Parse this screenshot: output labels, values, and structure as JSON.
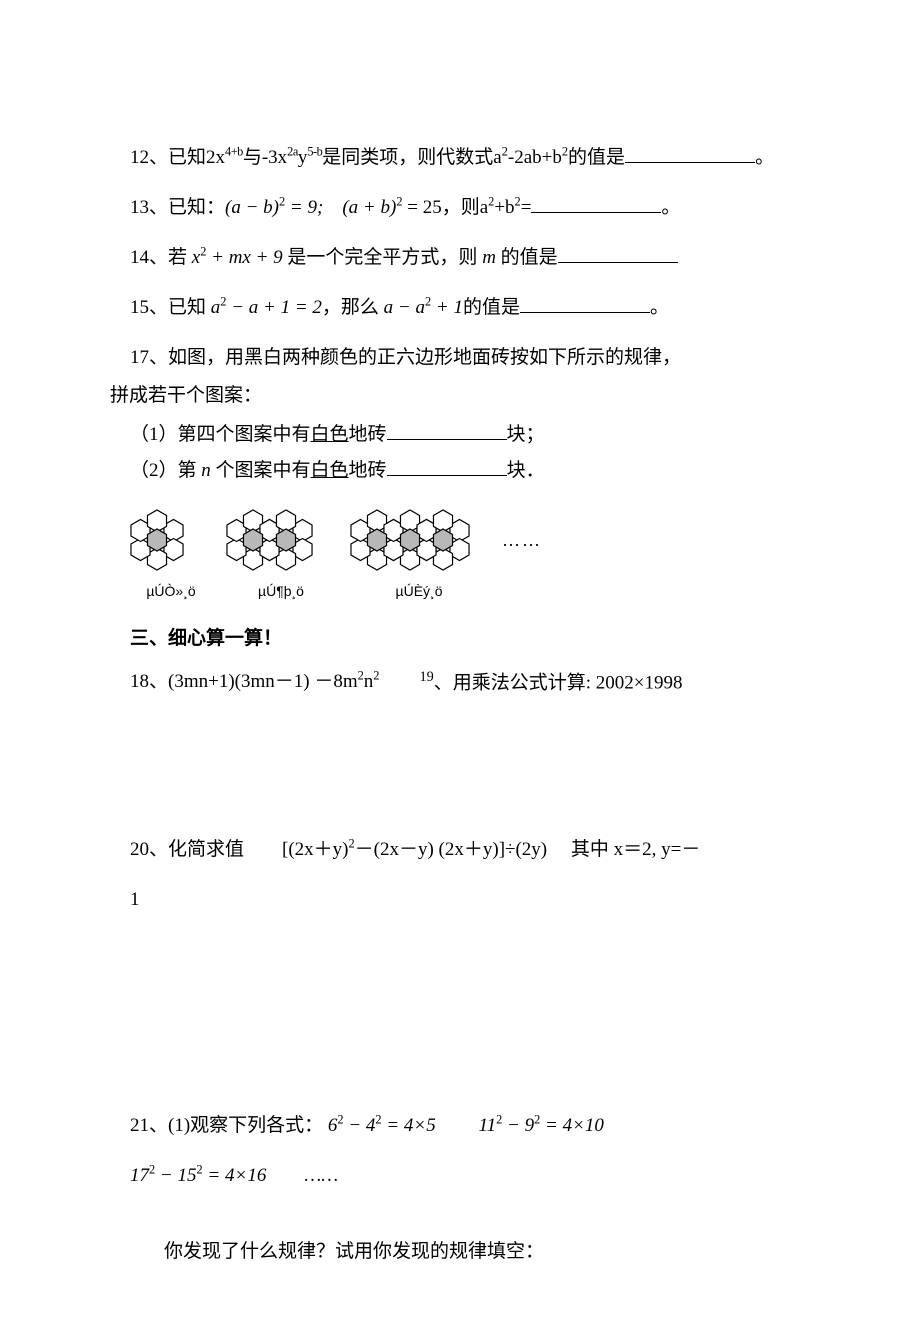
{
  "q12": {
    "prefix": "12、已知2x",
    "exp1": "4+b",
    "mid1": "与-3x",
    "exp2": "2a",
    "mid2": "y",
    "exp3": "5-b",
    "mid3": "是同类项，则代数式a",
    "exp4": "2",
    "mid4": "-2ab+b",
    "exp5": "2",
    "tail": "的值是",
    "end": "。"
  },
  "q13": {
    "prefix": "13、已知：",
    "expr1a": "(a − b)",
    "expr1p": "2",
    "expr1b": " = 9;　",
    "expr2a": "(a + b)",
    "expr2p": "2",
    "expr2b": " = 25，则a",
    "p2": "2",
    "mid": "+b",
    "p2b": "2",
    "tail": "=",
    "end": "。"
  },
  "q14": {
    "prefix": "14、若 ",
    "expr": "x",
    "p2": "2",
    "mid1": " + mx + 9",
    "mid2": " 是一个完全平方式，则 ",
    "mvar": "m",
    "tail": " 的值是"
  },
  "q15": {
    "prefix": "15、已知 ",
    "a": "a",
    "p2": "2",
    "mid1": " − a + 1 = 2",
    "mid2": "，那么 ",
    "expr2": "a − a",
    "p2b": "2",
    "mid3": " + 1",
    "tail": "的值是",
    "end": "。"
  },
  "q17": {
    "line1": "17、如图，用黑白两种颜色的正六边形地面砖按如下所示的规律，",
    "line2": "拼成若干个图案：",
    "sub1a": "（1）第四个图案中有",
    "white": "白色",
    "sub1b": "地砖",
    "sub1c": "块；",
    "sub2a": "（2）第 ",
    "nvar": "n",
    "sub2b": " 个图案中有",
    "sub2c": "地砖",
    "sub2d": "块．",
    "labels": [
      "µÚÒ»¸ö",
      "µÚ¶þ¸ö",
      "µÚÈý¸ö"
    ],
    "dots": "……"
  },
  "section3": "三、细心算一算！",
  "q18": {
    "left_a": "18、(3mn+1)(3mn－1)  －8m",
    "left_p1": "2",
    "left_b": "n",
    "left_p2": "2",
    "right_num": "19",
    "right_text": "、用乘法公式计算:  2002×1998"
  },
  "q20": {
    "a": "20、化简求值　　[(2x＋y)",
    "p2": "2",
    "b": "－(2x－y) (2x＋y)]÷(2y)　 其中  x＝2, y=－",
    "c": "1"
  },
  "q21": {
    "prefix": "21、(1)观察下列各式：",
    "e1a": "6",
    "e1b": " − 4",
    "e1c": " = 4×5　　",
    "e2a": "11",
    "e2b": " − 9",
    "e2c": " = 4×10",
    "line2a": "17",
    "line2b": " − 15",
    "line2c": " = 4×16　　……",
    "p2": "2",
    "ask": "你发现了什么规律？试用你发现的规律填空："
  },
  "hex": {
    "fill_empty": "#ffffff",
    "fill_dark": "#b8b8b8",
    "stroke": "#000000",
    "stroke_width": 1.2
  }
}
